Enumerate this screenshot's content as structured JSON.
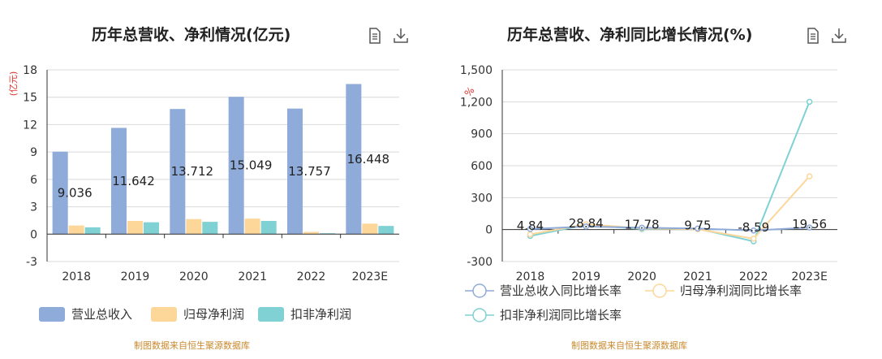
{
  "left": {
    "title": "历年总营收、净利情况(亿元)",
    "source": "制图数据来自恒生聚源数据库"
  },
  "right": {
    "title": "历年总营收、净利同比增长情况(%)",
    "source": "制图数据来自恒生聚源数据库"
  },
  "colors": {
    "revenue": "#8eabd9",
    "parent_net_profit": "#fdd69a",
    "deducted_net_profit": "#7fd1d4",
    "unit_label": "#e0312a",
    "source": "#c98a2e"
  },
  "icons": [
    "document-icon",
    "download-icon"
  ],
  "chart_data": [
    {
      "type": "bar",
      "title": "历年总营收、净利情况(亿元)",
      "ylabel": "(亿元)",
      "categories": [
        "2018",
        "2019",
        "2020",
        "2021",
        "2022",
        "2023E"
      ],
      "ylim": [
        -3,
        18
      ],
      "yticks": [
        "-3",
        "0",
        "3",
        "6",
        "9",
        "12",
        "15",
        "18"
      ],
      "grid": true,
      "legend_position": "bottom",
      "series": [
        {
          "name": "营业总收入",
          "values": [
            9.036,
            11.642,
            13.712,
            15.049,
            13.757,
            16.448
          ],
          "labels": [
            "9.036",
            "11.642",
            "13.712",
            "15.049",
            "13.757",
            "16.448"
          ]
        },
        {
          "name": "归母净利润",
          "values": [
            0.95,
            1.45,
            1.65,
            1.7,
            0.25,
            1.15
          ]
        },
        {
          "name": "扣非净利润",
          "values": [
            0.75,
            1.3,
            1.35,
            1.45,
            0.1,
            0.9
          ]
        }
      ]
    },
    {
      "type": "line",
      "title": "历年总营收、净利同比增长情况(%)",
      "ylabel": "%",
      "categories": [
        "2018",
        "2019",
        "2020",
        "2021",
        "2022",
        "2023E"
      ],
      "ylim": [
        -300,
        1500
      ],
      "yticks": [
        "-300",
        "0",
        "300",
        "600",
        "900",
        "1,200",
        "1,500"
      ],
      "grid": true,
      "legend_position": "bottom",
      "series": [
        {
          "name": "营业总收入同比增长率",
          "values": [
            4.84,
            28.84,
            17.78,
            9.75,
            -8.59,
            19.56
          ],
          "labels": [
            "4.84",
            "28.84",
            "17.78",
            "9.75",
            "-8.59",
            "19.56"
          ]
        },
        {
          "name": "归母净利润同比增长率",
          "values": [
            -45,
            50,
            12,
            3,
            -85,
            500
          ]
        },
        {
          "name": "扣非净利润同比增长率",
          "values": [
            -60,
            45,
            5,
            8,
            -110,
            1200
          ]
        }
      ]
    }
  ]
}
